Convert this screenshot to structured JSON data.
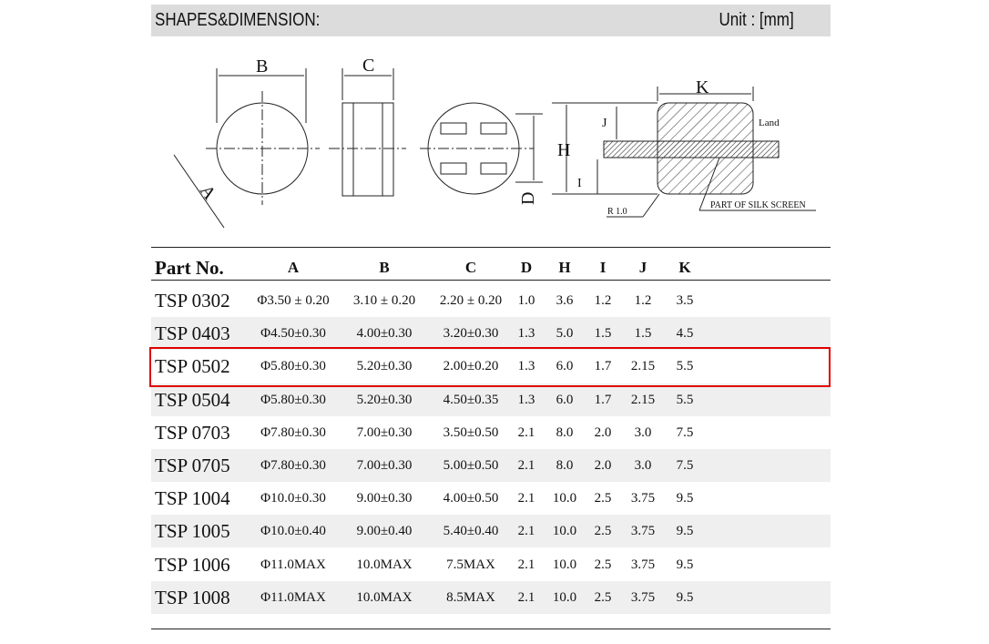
{
  "header": {
    "title": "SHAPES&DIMENSION:",
    "unit": "Unit : [mm]"
  },
  "drawing": {
    "labels": {
      "a": "A",
      "b": "B",
      "c": "C",
      "d": "D",
      "h": "H",
      "i": "I",
      "j": "J",
      "k": "K",
      "land": "Land",
      "r": "R 1.0",
      "silk": "PART OF SILK SCREEN"
    }
  },
  "table": {
    "headers": [
      "Part No.",
      "A",
      "B",
      "C",
      "D",
      "H",
      "I",
      "J",
      "K"
    ],
    "rows": [
      [
        "TSP 0302",
        "Φ3.50 ± 0.20",
        "3.10 ± 0.20",
        "2.20 ± 0.20",
        "1.0",
        "3.6",
        "1.2",
        "1.2",
        "3.5"
      ],
      [
        "TSP 0403",
        "Φ4.50±0.30",
        "4.00±0.30",
        "3.20±0.30",
        "1.3",
        "5.0",
        "1.5",
        "1.5",
        "4.5"
      ],
      [
        "TSP 0502",
        "Φ5.80±0.30",
        "5.20±0.30",
        "2.00±0.20",
        "1.3",
        "6.0",
        "1.7",
        "2.15",
        "5.5"
      ],
      [
        "TSP 0504",
        "Φ5.80±0.30",
        "5.20±0.30",
        "4.50±0.35",
        "1.3",
        "6.0",
        "1.7",
        "2.15",
        "5.5"
      ],
      [
        "TSP 0703",
        "Φ7.80±0.30",
        "7.00±0.30",
        "3.50±0.50",
        "2.1",
        "8.0",
        "2.0",
        "3.0",
        "7.5"
      ],
      [
        "TSP 0705",
        "Φ7.80±0.30",
        "7.00±0.30",
        "5.00±0.50",
        "2.1",
        "8.0",
        "2.0",
        "3.0",
        "7.5"
      ],
      [
        "TSP 1004",
        "Φ10.0±0.30",
        "9.00±0.30",
        "4.00±0.50",
        "2.1",
        "10.0",
        "2.5",
        "3.75",
        "9.5"
      ],
      [
        "TSP 1005",
        "Φ10.0±0.40",
        "9.00±0.40",
        "5.40±0.40",
        "2.1",
        "10.0",
        "2.5",
        "3.75",
        "9.5"
      ],
      [
        "TSP 1006",
        "Φ11.0MAX",
        "10.0MAX",
        "7.5MAX",
        "2.1",
        "10.0",
        "2.5",
        "3.75",
        "9.5"
      ],
      [
        "TSP 1008",
        "Φ11.0MAX",
        "10.0MAX",
        "8.5MAX",
        "2.1",
        "10.0",
        "2.5",
        "3.75",
        "9.5"
      ]
    ],
    "highlighted_row": "TSP 0502",
    "highlight_color": "#e00000"
  }
}
